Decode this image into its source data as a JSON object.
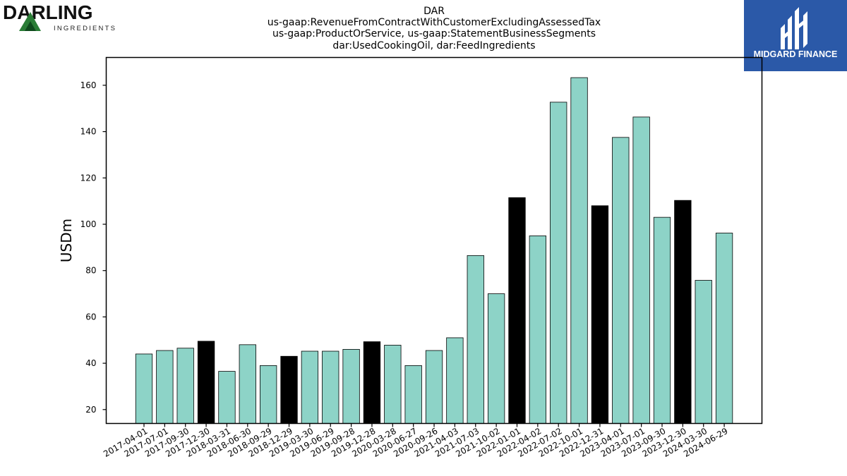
{
  "logos": {
    "left": {
      "name": "DARLING",
      "sub": "INGREDIENTS",
      "color": "#1e6b2c"
    },
    "right": {
      "name": "MIDGARD FINANCE",
      "bg": "#2b59a8"
    }
  },
  "chart_data": {
    "type": "bar",
    "title_lines": [
      "DAR",
      "us-gaap:RevenueFromContractWithCustomerExcludingAssessedTax",
      "us-gaap:ProductOrService, us-gaap:StatementBusinessSegments",
      "dar:UsedCookingOil, dar:FeedIngredients"
    ],
    "ylabel": "USDm",
    "xlabel": "",
    "ylim": [
      14,
      172
    ],
    "yticks": [
      20,
      40,
      60,
      80,
      100,
      120,
      140,
      160
    ],
    "grid": false,
    "colors": {
      "quarter": "#8dd3c7",
      "fiscal_year_end": "#000000",
      "edge": "#000000"
    },
    "categories": [
      "2017-04-01",
      "2017-07-01",
      "2017-09-30",
      "2017-12-30",
      "2018-03-31",
      "2018-06-30",
      "2018-09-29",
      "2018-12-29",
      "2019-03-30",
      "2019-06-29",
      "2019-09-28",
      "2019-12-28",
      "2020-03-28",
      "2020-06-27",
      "2020-09-26",
      "2021-04-03",
      "2021-07-03",
      "2021-10-02",
      "2022-01-01",
      "2022-04-02",
      "2022-07-02",
      "2022-10-01",
      "2022-12-31",
      "2023-04-01",
      "2023-07-01",
      "2023-09-30",
      "2023-12-30",
      "2024-03-30",
      "2024-06-29"
    ],
    "values": [
      44.0,
      45.5,
      46.5,
      49.5,
      36.5,
      48.0,
      39.0,
      43.0,
      45.2,
      45.2,
      46.0,
      49.3,
      47.8,
      39.0,
      45.5,
      51.0,
      86.5,
      70.0,
      111.5,
      95.0,
      152.7,
      163.3,
      108.0,
      137.5,
      146.3,
      103.0,
      110.3,
      75.8,
      96.2
    ],
    "highlight": [
      false,
      false,
      false,
      true,
      false,
      false,
      false,
      true,
      false,
      false,
      false,
      true,
      false,
      false,
      false,
      false,
      false,
      false,
      true,
      false,
      false,
      false,
      true,
      false,
      false,
      false,
      true,
      false,
      false
    ]
  }
}
